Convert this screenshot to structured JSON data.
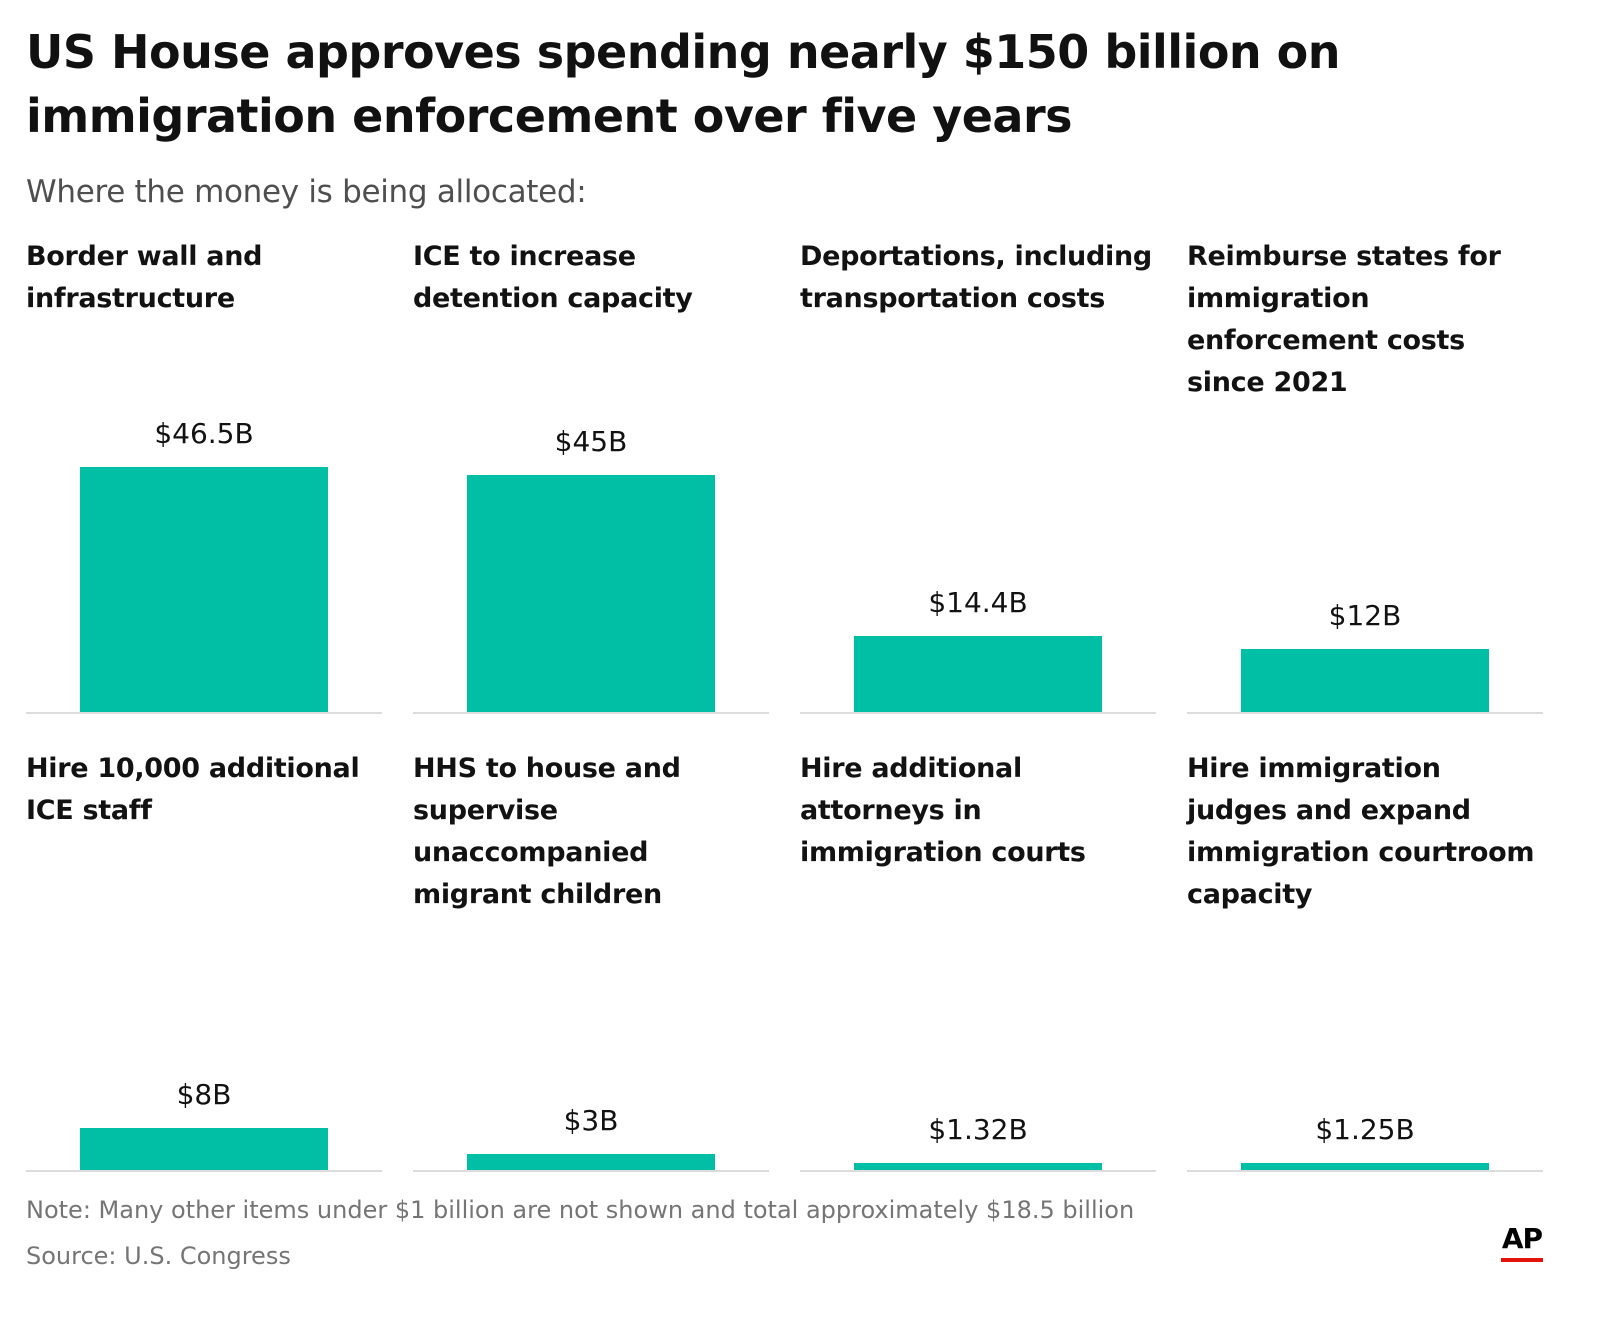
{
  "title": "US House approves spending nearly $150 billion on immigration enforcement over five years",
  "subtitle": "Where the money is being allocated:",
  "note": "Note: Many other items under $1 billion are not shown and total approximately $18.5 billion",
  "source": "Source: U.S. Congress",
  "logo": {
    "text": "AP",
    "accent_color": "#e3120b"
  },
  "colors": {
    "bar": "#00bfa5",
    "baseline": "#dcdcdc"
  },
  "chart_data": {
    "type": "bar",
    "unit": "billions of dollars",
    "ylim": [
      0,
      46.5
    ],
    "grid": false,
    "categories": [
      "Border wall and infrastructure",
      "ICE to increase detention capacity",
      "Deportations, including transportation costs",
      "Reimburse states for immigration enforcement costs since 2021",
      "Hire 10,000 additional ICE staff",
      "HHS to house and supervise unaccompanied migrant children",
      "Hire additional attorneys in immigration courts",
      "Hire immigration judges and expand immigration courtroom capacity"
    ],
    "values": [
      46.5,
      45,
      14.4,
      12,
      8,
      3,
      1.32,
      1.25
    ],
    "value_labels": [
      "$46.5B",
      "$45B",
      "$14.4B",
      "$12B",
      "$8B",
      "$3B",
      "$1.32B",
      "$1.25B"
    ]
  }
}
